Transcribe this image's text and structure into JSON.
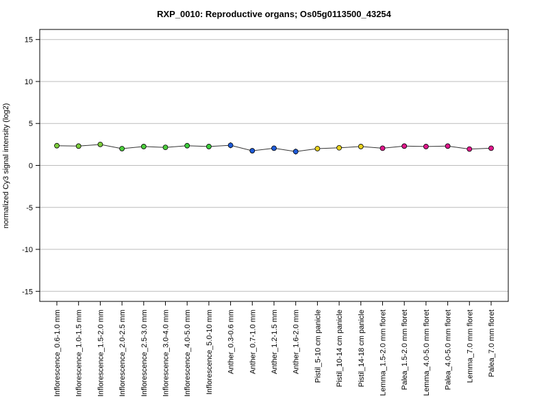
{
  "chart_data": {
    "type": "line",
    "title": "RXP_0010: Reproductive organs; Os05g0113500_43254",
    "xlabel": "",
    "ylabel": "normalized Cy3 signal intensity (log2)",
    "ylim": [
      -16.2,
      16.2
    ],
    "yticks": [
      -15,
      -10,
      -5,
      0,
      5,
      10,
      15
    ],
    "grid": true,
    "categories": [
      "Inflorescence_0.6-1.0 mm",
      "Inflorescence_1.0-1.5 mm",
      "Inflorescence_1.5-2.0 mm",
      "Inflorescence_2.0-2.5 mm",
      "Inflorescence_2.5-3.0 mm",
      "Inflorescence_3.0-4.0 mm",
      "Inflorescence_4.0-5.0 mm",
      "Inflorescence_5.0-10 mm",
      "Anther_0.3-0.6 mm",
      "Anther_0.7-1.0 mm",
      "Anther_1.2-1.5 mm",
      "Anther_1.6-2.0 mm",
      "Pistil_5-10 cm panicle",
      "Pistil_10-14 cm panicle",
      "Pistil_14-18 cm panicle",
      "Lemma_1.5-2.0 mm floret",
      "Palea_1.5-2.0 mm floret",
      "Lemma_4.0-5.0 mm floret",
      "Palea_4.0-5.0 mm floret",
      "Lemma_7.0 mm floret",
      "Palea_7.0 mm floret"
    ],
    "series": [
      {
        "values": [
          2.35,
          2.3,
          2.5,
          2.0,
          2.25,
          2.15,
          2.35,
          2.25,
          2.4,
          1.75,
          2.05,
          1.65,
          2.0,
          2.1,
          2.25,
          2.05,
          2.3,
          2.25,
          2.3,
          1.95,
          2.05
        ],
        "errors": [
          0.1,
          0.1,
          0.15,
          0.1,
          0.1,
          0.1,
          0.1,
          0.1,
          0.35,
          0.1,
          0.3,
          0.35,
          0.3,
          0.15,
          0.15,
          0.3,
          0.25,
          0.1,
          0.2,
          0.1,
          0.1
        ]
      }
    ],
    "point_colors": [
      "#7ccd3c",
      "#7ccd3c",
      "#7ccd3c",
      "#4ccd3c",
      "#4ccd3c",
      "#4ccd3c",
      "#3ccd3c",
      "#3ccd3c",
      "#1e5bd8",
      "#1e5bd8",
      "#1e5bd8",
      "#1e5bd8",
      "#e8d21e",
      "#e8d21e",
      "#e8d21e",
      "#e0188c",
      "#e0188c",
      "#e0188c",
      "#e0188c",
      "#e0188c",
      "#e0188c"
    ],
    "line_color": "#333333",
    "grid_color": "#bbbbbb"
  }
}
